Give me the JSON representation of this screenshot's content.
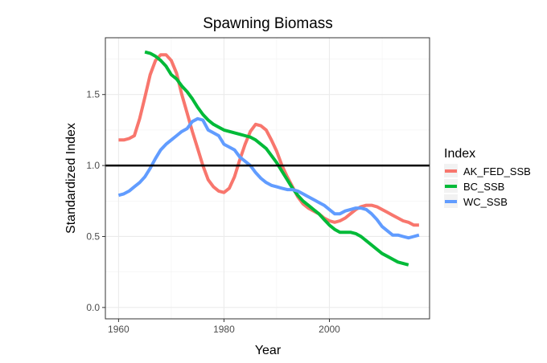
{
  "chart_data": {
    "type": "line",
    "title": "Spawning Biomass",
    "xlabel": "Year",
    "ylabel": "Standardized Index",
    "xlim": [
      1957.5,
      2019
    ],
    "ylim": [
      -0.08,
      1.9
    ],
    "x_ticks": [
      1960,
      1980,
      2000
    ],
    "y_ticks": [
      0.0,
      0.5,
      1.0,
      1.5
    ],
    "x_tick_labels": [
      "1960",
      "1980",
      "2000"
    ],
    "y_tick_labels": [
      "0.0",
      "0.5",
      "1.0",
      "1.5"
    ],
    "grid": true,
    "reference_line": {
      "y": 1.0,
      "color": "#000000"
    },
    "legend": {
      "title": "Index",
      "position": "right"
    },
    "series": [
      {
        "name": "AK_FED_SSB",
        "color": "#F8766D",
        "x": [
          1960,
          1961,
          1962,
          1963,
          1964,
          1965,
          1966,
          1967,
          1968,
          1969,
          1970,
          1971,
          1972,
          1973,
          1974,
          1975,
          1976,
          1977,
          1978,
          1979,
          1980,
          1981,
          1982,
          1983,
          1984,
          1985,
          1986,
          1987,
          1988,
          1989,
          1990,
          1991,
          1992,
          1993,
          1994,
          1995,
          1996,
          1997,
          1998,
          1999,
          2000,
          2001,
          2002,
          2003,
          2004,
          2005,
          2006,
          2007,
          2008,
          2009,
          2010,
          2011,
          2012,
          2013,
          2014,
          2015,
          2016,
          2017
        ],
        "y": [
          1.18,
          1.18,
          1.19,
          1.21,
          1.33,
          1.48,
          1.64,
          1.74,
          1.78,
          1.78,
          1.74,
          1.65,
          1.5,
          1.37,
          1.24,
          1.12,
          1.0,
          0.9,
          0.85,
          0.82,
          0.81,
          0.84,
          0.92,
          1.04,
          1.15,
          1.24,
          1.29,
          1.28,
          1.25,
          1.18,
          1.1,
          1.0,
          0.92,
          0.85,
          0.78,
          0.73,
          0.7,
          0.68,
          0.66,
          0.63,
          0.61,
          0.6,
          0.61,
          0.63,
          0.66,
          0.69,
          0.71,
          0.72,
          0.72,
          0.71,
          0.69,
          0.67,
          0.65,
          0.63,
          0.61,
          0.6,
          0.58,
          0.58
        ]
      },
      {
        "name": "BC_SSB",
        "color": "#00BA38",
        "x": [
          1965,
          1966,
          1967,
          1968,
          1969,
          1970,
          1971,
          1972,
          1973,
          1974,
          1975,
          1976,
          1977,
          1978,
          1979,
          1980,
          1981,
          1982,
          1983,
          1984,
          1985,
          1986,
          1987,
          1988,
          1989,
          1990,
          1991,
          1992,
          1993,
          1994,
          1995,
          1996,
          1997,
          1998,
          1999,
          2000,
          2001,
          2002,
          2003,
          2004,
          2005,
          2006,
          2007,
          2008,
          2009,
          2010,
          2011,
          2012,
          2013,
          2014,
          2015
        ],
        "y": [
          1.8,
          1.79,
          1.77,
          1.74,
          1.7,
          1.64,
          1.61,
          1.56,
          1.52,
          1.47,
          1.41,
          1.36,
          1.32,
          1.29,
          1.27,
          1.25,
          1.24,
          1.23,
          1.22,
          1.21,
          1.2,
          1.18,
          1.15,
          1.12,
          1.07,
          1.02,
          0.96,
          0.9,
          0.84,
          0.79,
          0.75,
          0.72,
          0.69,
          0.66,
          0.62,
          0.58,
          0.55,
          0.53,
          0.53,
          0.53,
          0.52,
          0.5,
          0.47,
          0.44,
          0.41,
          0.38,
          0.36,
          0.34,
          0.32,
          0.31,
          0.3
        ]
      },
      {
        "name": "WC_SSB",
        "color": "#619CFF",
        "x": [
          1960,
          1961,
          1962,
          1963,
          1964,
          1965,
          1966,
          1967,
          1968,
          1969,
          1970,
          1971,
          1972,
          1973,
          1974,
          1975,
          1976,
          1977,
          1978,
          1979,
          1980,
          1981,
          1982,
          1983,
          1984,
          1985,
          1986,
          1987,
          1988,
          1989,
          1990,
          1991,
          1992,
          1993,
          1994,
          1995,
          1996,
          1997,
          1998,
          1999,
          2000,
          2001,
          2002,
          2003,
          2004,
          2005,
          2006,
          2007,
          2008,
          2009,
          2010,
          2011,
          2012,
          2013,
          2014,
          2015,
          2016,
          2017
        ],
        "y": [
          0.79,
          0.8,
          0.82,
          0.85,
          0.88,
          0.92,
          0.98,
          1.05,
          1.11,
          1.15,
          1.18,
          1.21,
          1.24,
          1.26,
          1.31,
          1.33,
          1.32,
          1.25,
          1.23,
          1.21,
          1.15,
          1.13,
          1.11,
          1.06,
          1.03,
          1.0,
          0.95,
          0.91,
          0.88,
          0.86,
          0.85,
          0.84,
          0.83,
          0.83,
          0.82,
          0.8,
          0.78,
          0.76,
          0.74,
          0.72,
          0.69,
          0.66,
          0.66,
          0.68,
          0.69,
          0.7,
          0.7,
          0.69,
          0.66,
          0.62,
          0.57,
          0.54,
          0.51,
          0.51,
          0.5,
          0.49,
          0.5,
          0.51
        ]
      }
    ]
  }
}
